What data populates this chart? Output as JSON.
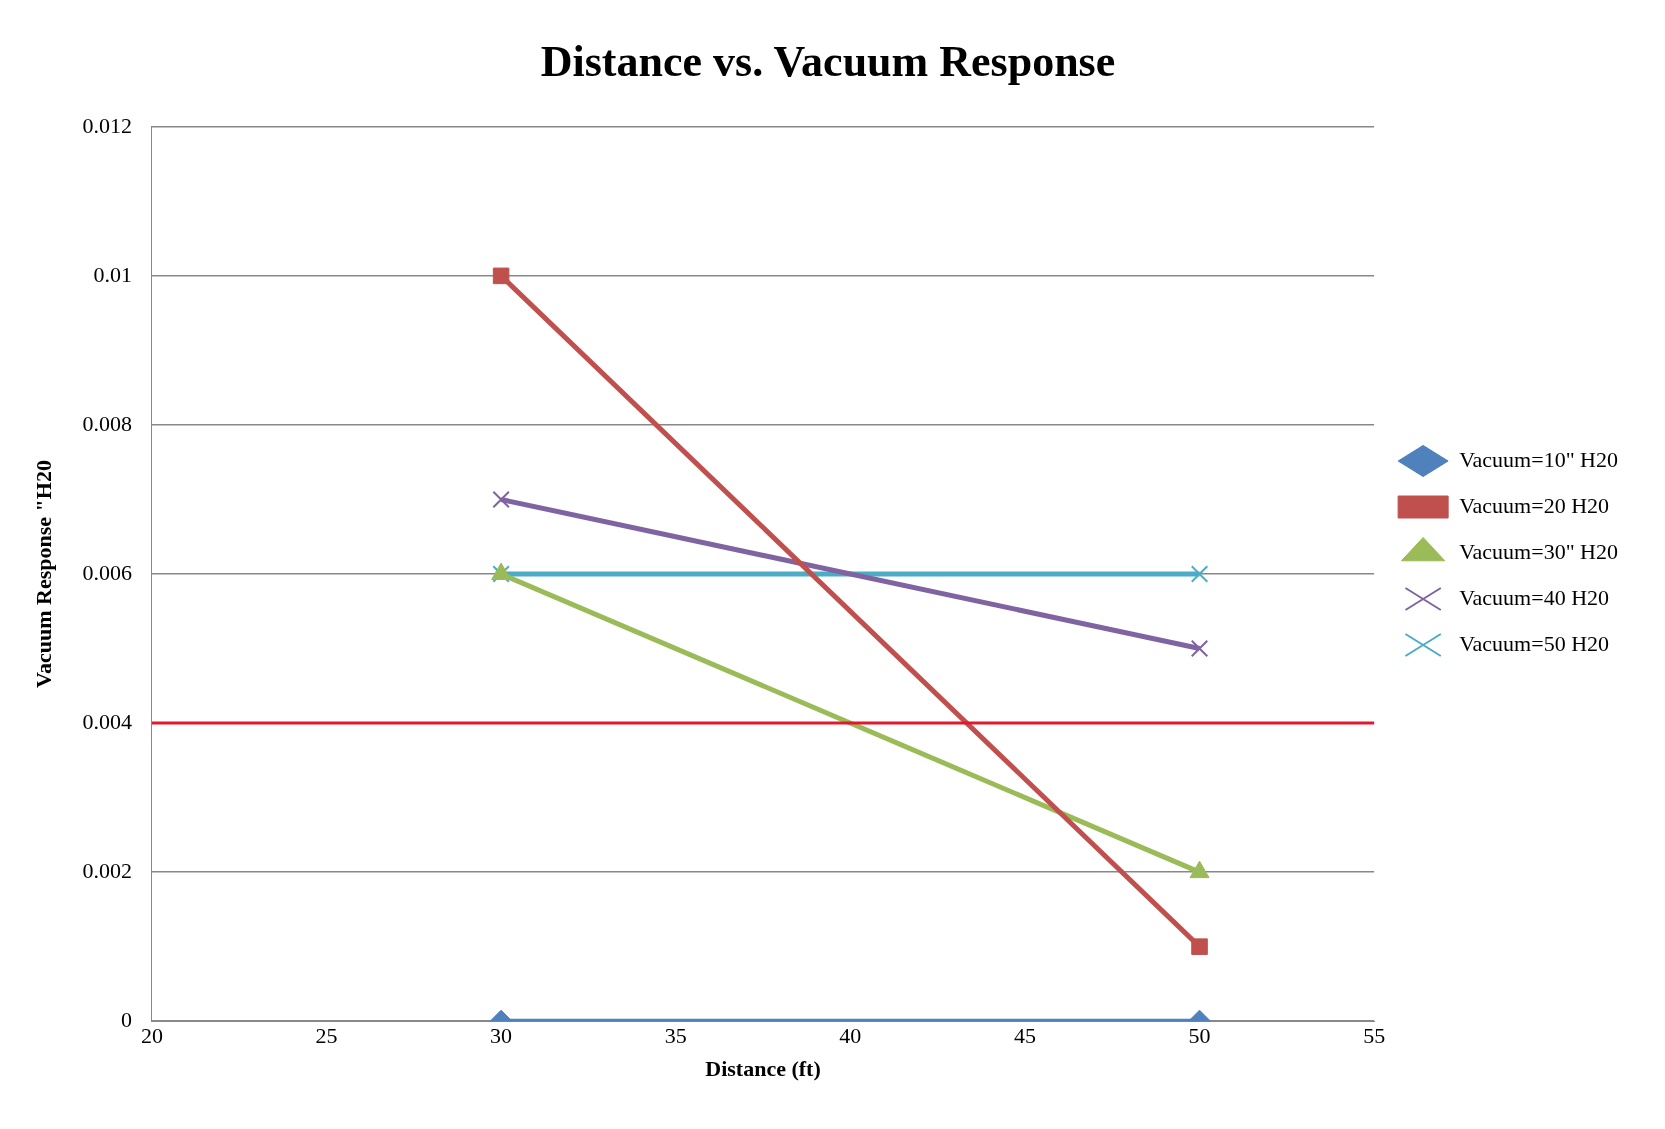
{
  "chart_data": {
    "type": "line",
    "title": "Distance vs. Vacuum Response",
    "xlabel": "Distance (ft)",
    "ylabel": "Vacuum Response \"H20",
    "xlim": [
      20,
      55
    ],
    "xticks": [
      20,
      25,
      30,
      35,
      40,
      45,
      50,
      55
    ],
    "ylim": [
      0,
      0.012
    ],
    "yticks": [
      0,
      0.002,
      0.004,
      0.006,
      0.008,
      0.01,
      0.012
    ],
    "grid": "y",
    "legend": "right",
    "x": [
      30,
      50
    ],
    "series": [
      {
        "name": "Vacuum=10\" H20",
        "color": "#4f81bd",
        "marker": "diamond",
        "values": [
          0,
          0
        ]
      },
      {
        "name": "Vacuum=20 H20",
        "color": "#c0504d",
        "marker": "square",
        "values": [
          0.01,
          0.001
        ]
      },
      {
        "name": "Vacuum=30\" H20",
        "color": "#9bbb59",
        "marker": "triangle",
        "values": [
          0.006,
          0.002
        ]
      },
      {
        "name": "Vacuum=40 H20",
        "color": "#8064a2",
        "marker": "cross",
        "values": [
          0.007,
          0.005
        ]
      },
      {
        "name": "Vacuum=50 H20",
        "color": "#4bacc6",
        "marker": "cross",
        "values": [
          0.006,
          0.006
        ]
      }
    ],
    "ref_lines": [
      {
        "axis": "y",
        "value": 0.004,
        "color": "#e3182d"
      }
    ]
  }
}
